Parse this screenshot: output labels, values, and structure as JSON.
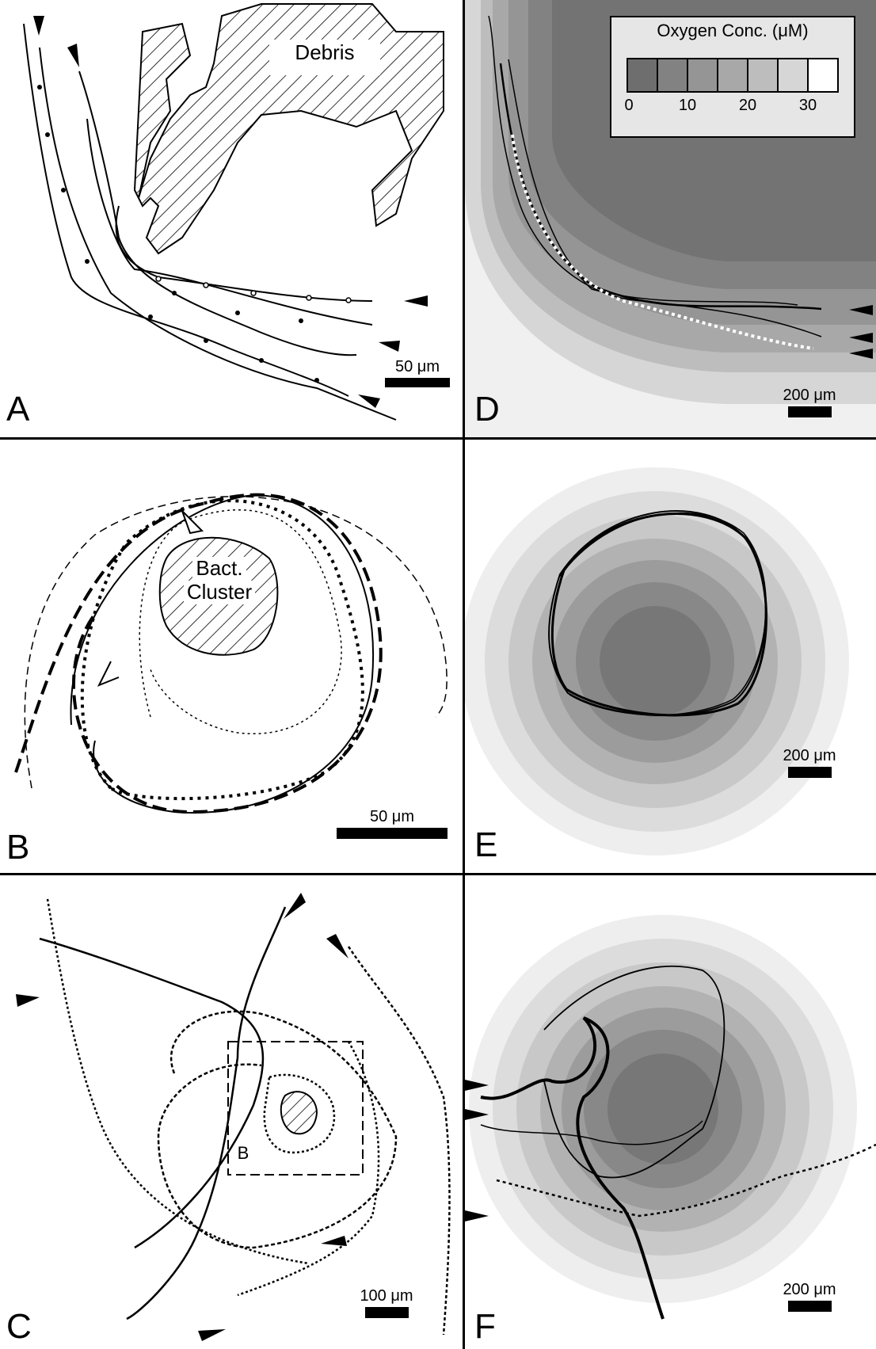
{
  "panels": {
    "A": {
      "label": "A",
      "scale": "50 μm",
      "debris": "Debris"
    },
    "B": {
      "label": "B",
      "scale": "50 μm",
      "cluster": [
        "Bact.",
        "Cluster"
      ]
    },
    "C": {
      "label": "C",
      "scale": "100 μm",
      "inset": "B"
    },
    "D": {
      "label": "D",
      "scale": "200 μm",
      "legend_title": "Oxygen Conc. (μM)",
      "legend_ticks": [
        "0",
        "10",
        "20",
        "30"
      ]
    },
    "E": {
      "label": "E",
      "scale": "200 μm"
    },
    "F": {
      "label": "F",
      "scale": "200 μm"
    }
  },
  "colors": {
    "frame": "#000000",
    "hatch": "#000000"
  }
}
